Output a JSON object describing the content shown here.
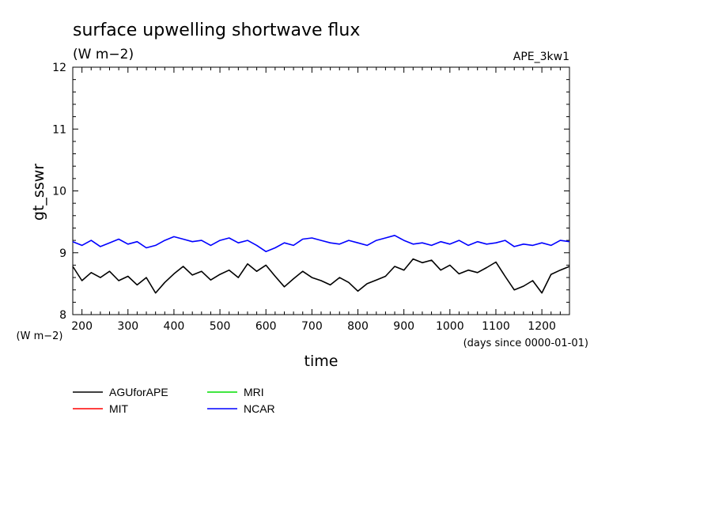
{
  "chart_data": {
    "type": "line",
    "title": "surface upwelling shortwave flux",
    "units": "(W m−2)",
    "experiment": "APE_3kw1",
    "ylabel": "gt_sswr",
    "y_units": "(W m−2)",
    "xlabel": "time",
    "x_units": "(days since 0000-01-01)",
    "xlim": [
      180,
      1260
    ],
    "ylim": [
      8,
      12
    ],
    "x_ticks": [
      "200",
      "300",
      "400",
      "500",
      "600",
      "700",
      "800",
      "900",
      "1000",
      "1100",
      "1200"
    ],
    "y_ticks": [
      "8",
      "9",
      "10",
      "11",
      "12"
    ],
    "legend_position": "below",
    "series": [
      {
        "name": "AGUforAPE",
        "color": "#000000",
        "x": [
          180,
          200,
          220,
          240,
          260,
          280,
          300,
          320,
          340,
          360,
          380,
          400,
          420,
          440,
          460,
          480,
          500,
          520,
          540,
          560,
          580,
          600,
          620,
          640,
          660,
          680,
          700,
          720,
          740,
          760,
          780,
          800,
          820,
          840,
          860,
          880,
          900,
          920,
          940,
          960,
          980,
          1000,
          1020,
          1040,
          1060,
          1080,
          1100,
          1120,
          1140,
          1160,
          1180,
          1200,
          1220,
          1240,
          1260
        ],
        "values": [
          8.78,
          8.55,
          8.68,
          8.6,
          8.7,
          8.55,
          8.62,
          8.48,
          8.6,
          8.35,
          8.52,
          8.66,
          8.78,
          8.64,
          8.7,
          8.56,
          8.65,
          8.72,
          8.6,
          8.82,
          8.7,
          8.8,
          8.62,
          8.45,
          8.58,
          8.7,
          8.6,
          8.55,
          8.48,
          8.6,
          8.52,
          8.38,
          8.5,
          8.56,
          8.62,
          8.78,
          8.72,
          8.9,
          8.84,
          8.88,
          8.72,
          8.8,
          8.66,
          8.72,
          8.68,
          8.76,
          8.85,
          8.62,
          8.4,
          8.46,
          8.55,
          8.35,
          8.65,
          8.72,
          8.78
        ]
      },
      {
        "name": "MIT",
        "color": "#ff0000",
        "x": [],
        "values": []
      },
      {
        "name": "MRI",
        "color": "#00dd00",
        "x": [],
        "values": []
      },
      {
        "name": "NCAR",
        "color": "#0000ff",
        "x": [
          180,
          200,
          220,
          240,
          260,
          280,
          300,
          320,
          340,
          360,
          380,
          400,
          420,
          440,
          460,
          480,
          500,
          520,
          540,
          560,
          580,
          600,
          620,
          640,
          660,
          680,
          700,
          720,
          740,
          760,
          780,
          800,
          820,
          840,
          860,
          880,
          900,
          920,
          940,
          960,
          980,
          1000,
          1020,
          1040,
          1060,
          1080,
          1100,
          1120,
          1140,
          1160,
          1180,
          1200,
          1220,
          1240,
          1260
        ],
        "values": [
          9.18,
          9.12,
          9.2,
          9.1,
          9.16,
          9.22,
          9.14,
          9.18,
          9.08,
          9.12,
          9.2,
          9.26,
          9.22,
          9.18,
          9.2,
          9.12,
          9.2,
          9.24,
          9.16,
          9.2,
          9.12,
          9.02,
          9.08,
          9.16,
          9.12,
          9.22,
          9.24,
          9.2,
          9.16,
          9.14,
          9.2,
          9.16,
          9.12,
          9.2,
          9.24,
          9.28,
          9.2,
          9.14,
          9.16,
          9.12,
          9.18,
          9.14,
          9.2,
          9.12,
          9.18,
          9.14,
          9.16,
          9.2,
          9.1,
          9.14,
          9.12,
          9.16,
          9.12,
          9.2,
          9.18
        ]
      }
    ]
  }
}
